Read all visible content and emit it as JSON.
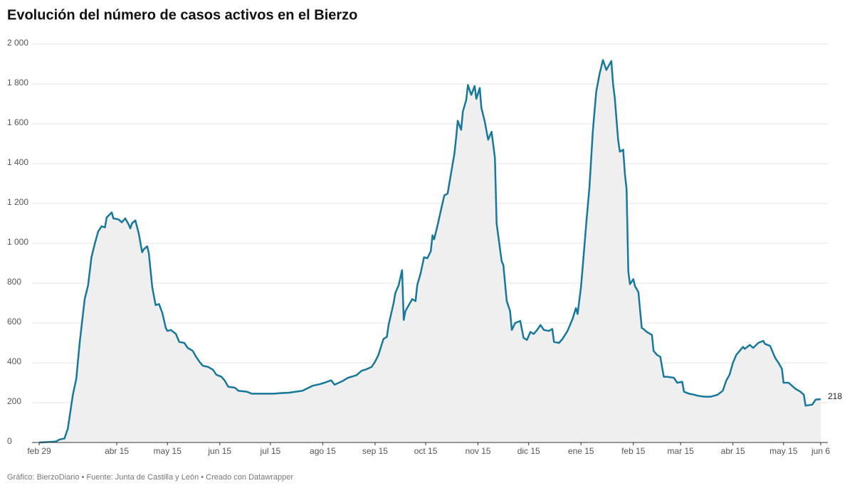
{
  "chart_data": {
    "type": "area",
    "title": "Evolución del número de casos activos en el Bierzo",
    "footer": "Gráfico: BierzoDiario • Fuente: Junta de Castilla y León • Creado con Datawrapper",
    "series": [
      {
        "color": "#16789a",
        "fill": "#efefef",
        "x": [
          0,
          5,
          10,
          12,
          15,
          17,
          20,
          22,
          24,
          27,
          29,
          31,
          33,
          35,
          37,
          39,
          40,
          43,
          44,
          47,
          49,
          51,
          53,
          54,
          55,
          57,
          59,
          61,
          62,
          64,
          65,
          67,
          69,
          71,
          73,
          75,
          76,
          78,
          81,
          83,
          86,
          88,
          91,
          93,
          95,
          97,
          100,
          103,
          105,
          108,
          110,
          112,
          116,
          118,
          123,
          126,
          133,
          139,
          143,
          148,
          152,
          156,
          159,
          162,
          166,
          169,
          173,
          175,
          177,
          180,
          183,
          188,
          191,
          194,
          197,
          199,
          201,
          204,
          206,
          207,
          210,
          211,
          213,
          215,
          216,
          217,
          219,
          221,
          223,
          224,
          226,
          228,
          230,
          232,
          233,
          234,
          236,
          238,
          240,
          242,
          244,
          246,
          247,
          248,
          250,
          251,
          253,
          254,
          256,
          258,
          259,
          261,
          262,
          264,
          266,
          268,
          270,
          271,
          274,
          275,
          277,
          279,
          280,
          282,
          285,
          287,
          289,
          291,
          293,
          295,
          297,
          299,
          302,
          304,
          305,
          308,
          310,
          313,
          316,
          318,
          319,
          321,
          322,
          324,
          326,
          328,
          330,
          332,
          334,
          336,
          339,
          340,
          341,
          343,
          344,
          346,
          347,
          348,
          349,
          350,
          352,
          353,
          355,
          357,
          358,
          360,
          363,
          364,
          366,
          368,
          370,
          372,
          376,
          378,
          381,
          382,
          385,
          388,
          390,
          394,
          398,
          402,
          405,
          407,
          409,
          411,
          413,
          415,
          417,
          418,
          421,
          423,
          426,
          429,
          430,
          433,
          436,
          438,
          440,
          441,
          444,
          448,
          451,
          453,
          454,
          458,
          460,
          463
        ],
        "values": [
          0,
          2,
          5,
          15,
          20,
          70,
          240,
          320,
          500,
          720,
          790,
          930,
          1000,
          1060,
          1085,
          1080,
          1130,
          1155,
          1125,
          1120,
          1105,
          1125,
          1095,
          1075,
          1100,
          1115,
          1050,
          955,
          970,
          985,
          950,
          780,
          690,
          695,
          650,
          575,
          560,
          565,
          545,
          505,
          500,
          475,
          460,
          430,
          405,
          385,
          380,
          365,
          340,
          330,
          310,
          280,
          275,
          260,
          255,
          245,
          245,
          245,
          248,
          250,
          255,
          260,
          272,
          285,
          292,
          300,
          312,
          290,
          298,
          310,
          325,
          338,
          360,
          368,
          380,
          405,
          440,
          520,
          530,
          590,
          700,
          750,
          790,
          865,
          615,
          660,
          690,
          720,
          710,
          790,
          850,
          930,
          925,
          960,
          1040,
          1020,
          1090,
          1165,
          1240,
          1250,
          1350,
          1450,
          1530,
          1615,
          1570,
          1660,
          1720,
          1795,
          1745,
          1790,
          1725,
          1780,
          1680,
          1610,
          1520,
          1560,
          1430,
          1100,
          910,
          890,
          710,
          660,
          565,
          600,
          610,
          525,
          515,
          555,
          545,
          565,
          590,
          565,
          560,
          570,
          505,
          500,
          520,
          560,
          620,
          675,
          645,
          780,
          880,
          1090,
          1280,
          1560,
          1760,
          1850,
          1920,
          1870,
          1915,
          1800,
          1730,
          1520,
          1460,
          1470,
          1350,
          1270,
          860,
          795,
          820,
          785,
          755,
          575,
          570,
          555,
          540,
          460,
          440,
          430,
          330,
          330,
          325,
          300,
          305,
          255,
          245,
          240,
          235,
          230,
          230,
          240,
          260,
          310,
          340,
          400,
          440,
          460,
          480,
          470,
          490,
          475,
          500,
          510,
          495,
          485,
          425,
          400,
          370,
          300,
          300,
          270,
          255,
          240,
          185,
          190,
          215,
          218
        ]
      }
    ],
    "xlim": [
      0,
      463
    ],
    "xticks": [
      {
        "value": 0,
        "label": "feb 29"
      },
      {
        "value": 46,
        "label": "abr 15"
      },
      {
        "value": 76,
        "label": "may 15"
      },
      {
        "value": 107,
        "label": "jun 15"
      },
      {
        "value": 137,
        "label": "jul 15"
      },
      {
        "value": 168,
        "label": "ago 15"
      },
      {
        "value": 199,
        "label": "sep 15"
      },
      {
        "value": 229,
        "label": "oct 15"
      },
      {
        "value": 260,
        "label": "nov 15"
      },
      {
        "value": 290,
        "label": "dic 15"
      },
      {
        "value": 321,
        "label": "ene 15"
      },
      {
        "value": 352,
        "label": "feb 15"
      },
      {
        "value": 380,
        "label": "mar 15"
      },
      {
        "value": 411,
        "label": "abr 15"
      },
      {
        "value": 441,
        "label": "may 15"
      },
      {
        "value": 463,
        "label": "jun 6"
      }
    ],
    "ylim": [
      0,
      2000
    ],
    "yticks": [
      0,
      200,
      400,
      600,
      800,
      {
        "value": 1000,
        "label": "1 000"
      },
      {
        "value": 1200,
        "label": "1 200"
      },
      {
        "value": 1400,
        "label": "1 400"
      },
      {
        "value": 1600,
        "label": "1 600"
      },
      {
        "value": 1800,
        "label": "1 800"
      },
      {
        "value": 2000,
        "label": "2 000"
      }
    ],
    "grid": true
  }
}
